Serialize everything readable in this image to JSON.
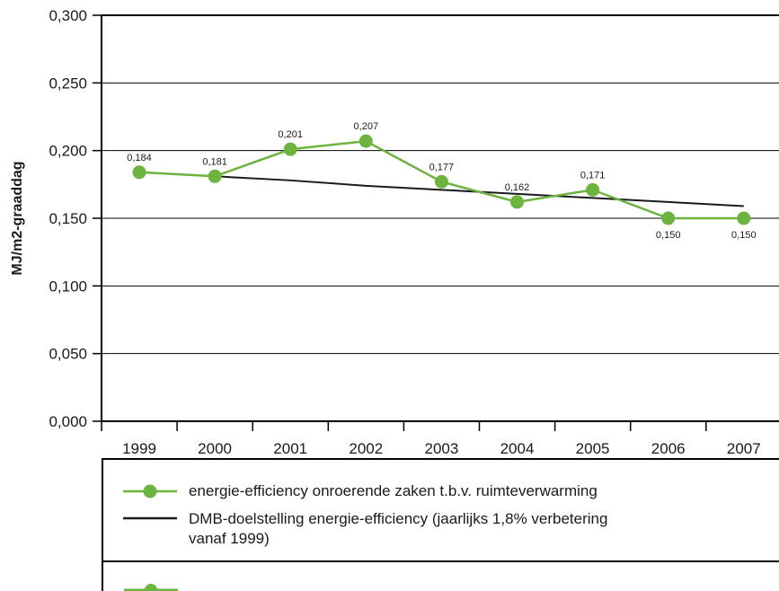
{
  "chart_data": {
    "type": "line",
    "ylabel": "MJ/m2-graaddag",
    "categories": [
      "1999",
      "2000",
      "2001",
      "2002",
      "2003",
      "2004",
      "2005",
      "2006",
      "2007"
    ],
    "ylim": [
      0,
      0.3
    ],
    "yticks": [
      "0,000",
      "0,050",
      "0,100",
      "0,150",
      "0,200",
      "0,250",
      "0,300"
    ],
    "ytick_values": [
      0,
      0.05,
      0.1,
      0.15,
      0.2,
      0.25,
      0.3
    ],
    "grid": true,
    "series": [
      {
        "name": "energie-efficiency onroerende zaken t.b.v. ruimteverwarming",
        "color": "#6db33f",
        "marker": "circle",
        "values": [
          0.184,
          0.181,
          0.201,
          0.207,
          0.177,
          0.162,
          0.171,
          0.15,
          0.15
        ],
        "labels": [
          "0,184",
          "0,181",
          "0,201",
          "0,207",
          "0,177",
          "0,162",
          "0,171",
          "0,150",
          "0,150"
        ]
      },
      {
        "name": "DMB-doelstelling energie-efficiency (jaarlijks 1,8% verbetering vanaf 1999)",
        "color": "#1a1a1a",
        "marker": "none",
        "values": [
          0.184,
          0.181,
          0.178,
          0.174,
          0.171,
          0.168,
          0.165,
          0.162,
          0.159
        ]
      }
    ],
    "legend_placement": "bottom"
  },
  "legend": {
    "entry1_line1": "energie-efficiency onroerende zaken t.b.v. ruimteverwarming",
    "entry2_line1": "DMB-doelstelling energie-efficiency (jaarlijks 1,8% verbetering",
    "entry2_line2": "vanaf 1999)"
  }
}
